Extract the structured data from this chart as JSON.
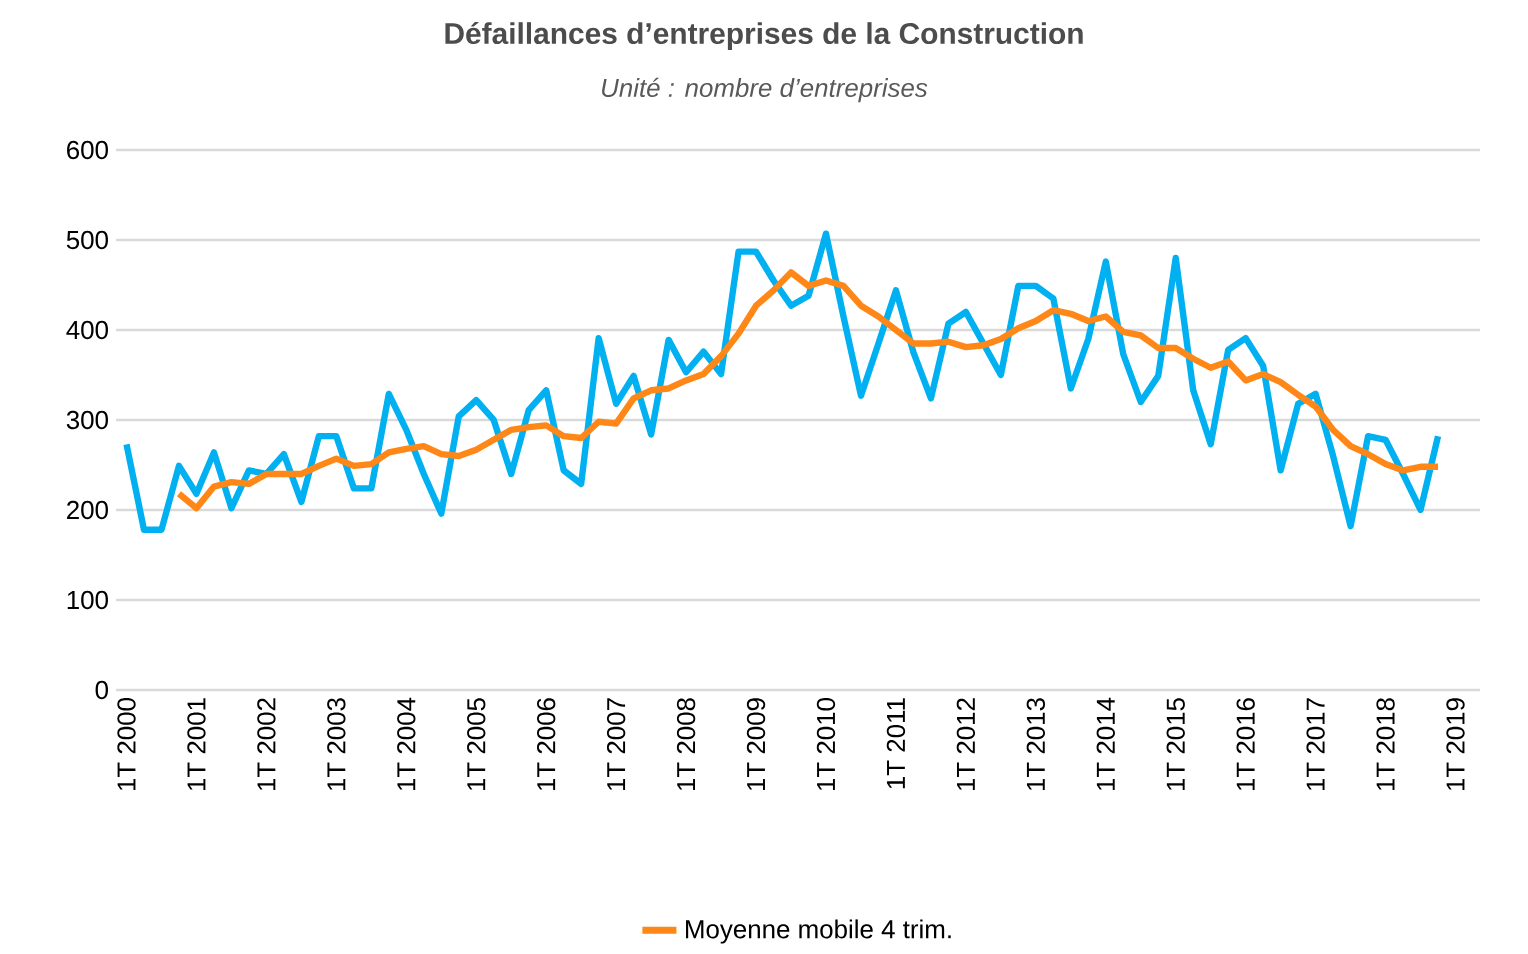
{
  "chart_data": {
    "type": "line",
    "title": "Défaillances d’entreprises de la Construction",
    "subtitle": "Unité : nombre d’entreprises",
    "categories": [
      "1T 2000",
      null,
      null,
      null,
      "1T 2001",
      null,
      null,
      null,
      "1T 2002",
      null,
      null,
      null,
      "1T 2003",
      null,
      null,
      null,
      "1T 2004",
      null,
      null,
      null,
      "1T 2005",
      null,
      null,
      null,
      "1T 2006",
      null,
      null,
      null,
      "1T 2007",
      null,
      null,
      null,
      "1T 2008",
      null,
      null,
      null,
      "1T 2009",
      null,
      null,
      null,
      "1T 2010",
      null,
      null,
      null,
      "1T 2011",
      null,
      null,
      null,
      "1T 2012",
      null,
      null,
      null,
      "1T 2013",
      null,
      null,
      null,
      "1T 2014",
      null,
      null,
      null,
      "1T 2015",
      null,
      null,
      null,
      "1T 2016",
      null,
      null,
      null,
      "1T 2017",
      null,
      null,
      null,
      "1T 2018",
      null,
      null,
      null,
      "1T 2019"
    ],
    "series": [
      {
        "color": "#00b0f0",
        "values": [
          273,
          178,
          178,
          249,
          218,
          264,
          202,
          244,
          240,
          262,
          209,
          282,
          282,
          224,
          224,
          329,
          289,
          240,
          196,
          304,
          322,
          300,
          240,
          311,
          333,
          244,
          229,
          391,
          318,
          349,
          284,
          389,
          353,
          376,
          351,
          487,
          487,
          455,
          427,
          438,
          507,
          415,
          327,
          385,
          444,
          375,
          324,
          407,
          420,
          385,
          350,
          449,
          449,
          435,
          335,
          390,
          476,
          373,
          320,
          349,
          480,
          333,
          273,
          378,
          391,
          360,
          244,
          318,
          329,
          260,
          182,
          282,
          278,
          240,
          200,
          282,
          null
        ]
      },
      {
        "name": "Moyenne mobile 4 trim.",
        "color": "#ff8717",
        "values": [
          null,
          null,
          null,
          218,
          202,
          226,
          231,
          229,
          240,
          240,
          240,
          249,
          257,
          249,
          251,
          264,
          268,
          271,
          262,
          260,
          267,
          278,
          289,
          292,
          294,
          282,
          280,
          298,
          296,
          324,
          333,
          335,
          344,
          351,
          371,
          396,
          427,
          444,
          464,
          449,
          455,
          449,
          427,
          415,
          400,
          385,
          385,
          387,
          381,
          383,
          390,
          402,
          410,
          422,
          418,
          410,
          415,
          398,
          394,
          380,
          380,
          368,
          358,
          365,
          344,
          351,
          342,
          328,
          315,
          289,
          271,
          262,
          251,
          244,
          248,
          248,
          null
        ]
      }
    ],
    "ylim": [
      0,
      600
    ],
    "yticks": [
      0,
      100,
      200,
      300,
      400,
      500,
      600
    ],
    "grid": "y",
    "legend": "bottom",
    "marker": "none"
  }
}
